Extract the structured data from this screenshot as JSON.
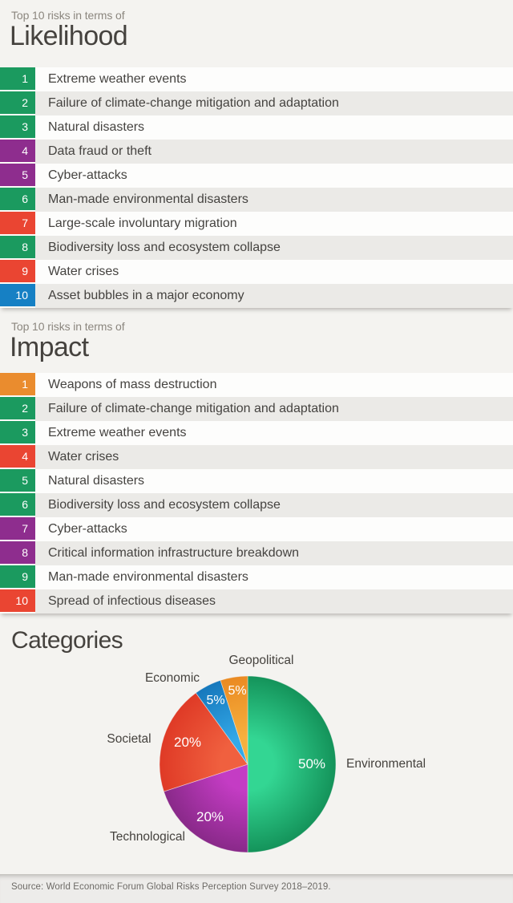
{
  "colors": {
    "environmental": "#1B9A5F",
    "technological": "#8E2D8E",
    "societal": "#EA4532",
    "economic": "#1680C4",
    "geopolitical": "#EA8C2E"
  },
  "sections": [
    {
      "eyebrow": "Top 10 risks in terms of",
      "title": "Likelihood",
      "items": [
        {
          "rank": "1",
          "label": "Extreme weather events",
          "category": "environmental"
        },
        {
          "rank": "2",
          "label": "Failure of climate-change mitigation and adaptation",
          "category": "environmental"
        },
        {
          "rank": "3",
          "label": "Natural disasters",
          "category": "environmental"
        },
        {
          "rank": "4",
          "label": "Data fraud or theft",
          "category": "technological"
        },
        {
          "rank": "5",
          "label": "Cyber-attacks",
          "category": "technological"
        },
        {
          "rank": "6",
          "label": "Man-made environmental disasters",
          "category": "environmental"
        },
        {
          "rank": "7",
          "label": "Large-scale involuntary migration",
          "category": "societal"
        },
        {
          "rank": "8",
          "label": "Biodiversity loss and ecosystem collapse",
          "category": "environmental"
        },
        {
          "rank": "9",
          "label": "Water crises",
          "category": "societal"
        },
        {
          "rank": "10",
          "label": "Asset bubbles in a major economy",
          "category": "economic"
        }
      ]
    },
    {
      "eyebrow": "Top 10 risks in terms of",
      "title": "Impact",
      "items": [
        {
          "rank": "1",
          "label": "Weapons of mass destruction",
          "category": "geopolitical"
        },
        {
          "rank": "2",
          "label": "Failure of climate-change mitigation and adaptation",
          "category": "environmental"
        },
        {
          "rank": "3",
          "label": "Extreme weather events",
          "category": "environmental"
        },
        {
          "rank": "4",
          "label": "Water crises",
          "category": "societal"
        },
        {
          "rank": "5",
          "label": "Natural disasters",
          "category": "environmental"
        },
        {
          "rank": "6",
          "label": "Biodiversity loss and ecosystem collapse",
          "category": "environmental"
        },
        {
          "rank": "7",
          "label": "Cyber-attacks",
          "category": "technological"
        },
        {
          "rank": "8",
          "label": "Critical information infrastructure breakdown",
          "category": "technological"
        },
        {
          "rank": "9",
          "label": "Man-made environmental disasters",
          "category": "environmental"
        },
        {
          "rank": "10",
          "label": "Spread of infectious diseases",
          "category": "societal"
        }
      ]
    }
  ],
  "chart_data": {
    "type": "pie",
    "title": "Categories",
    "start_angle_deg": 0,
    "direction": "clockwise",
    "labels_outside": true,
    "pct_labels_inside": true,
    "slices": [
      {
        "label": "Environmental",
        "value": 50,
        "pct_text": "50%",
        "color": "#14935A",
        "color_light": "#33D693"
      },
      {
        "label": "Technological",
        "value": 20,
        "pct_text": "20%",
        "color": "#892989",
        "color_light": "#C43CC4"
      },
      {
        "label": "Societal",
        "value": 20,
        "pct_text": "20%",
        "color": "#DF3A26",
        "color_light": "#F0603F"
      },
      {
        "label": "Economic",
        "value": 5,
        "pct_text": "5%",
        "color": "#1678BC",
        "color_light": "#33A9E8"
      },
      {
        "label": "Geopolitical",
        "value": 5,
        "pct_text": "5%",
        "color": "#EA8A22",
        "color_light": "#F6B03E"
      }
    ]
  },
  "footer": {
    "source": "Source: World Economic Forum Global Risks Perception Survey 2018–2019."
  }
}
